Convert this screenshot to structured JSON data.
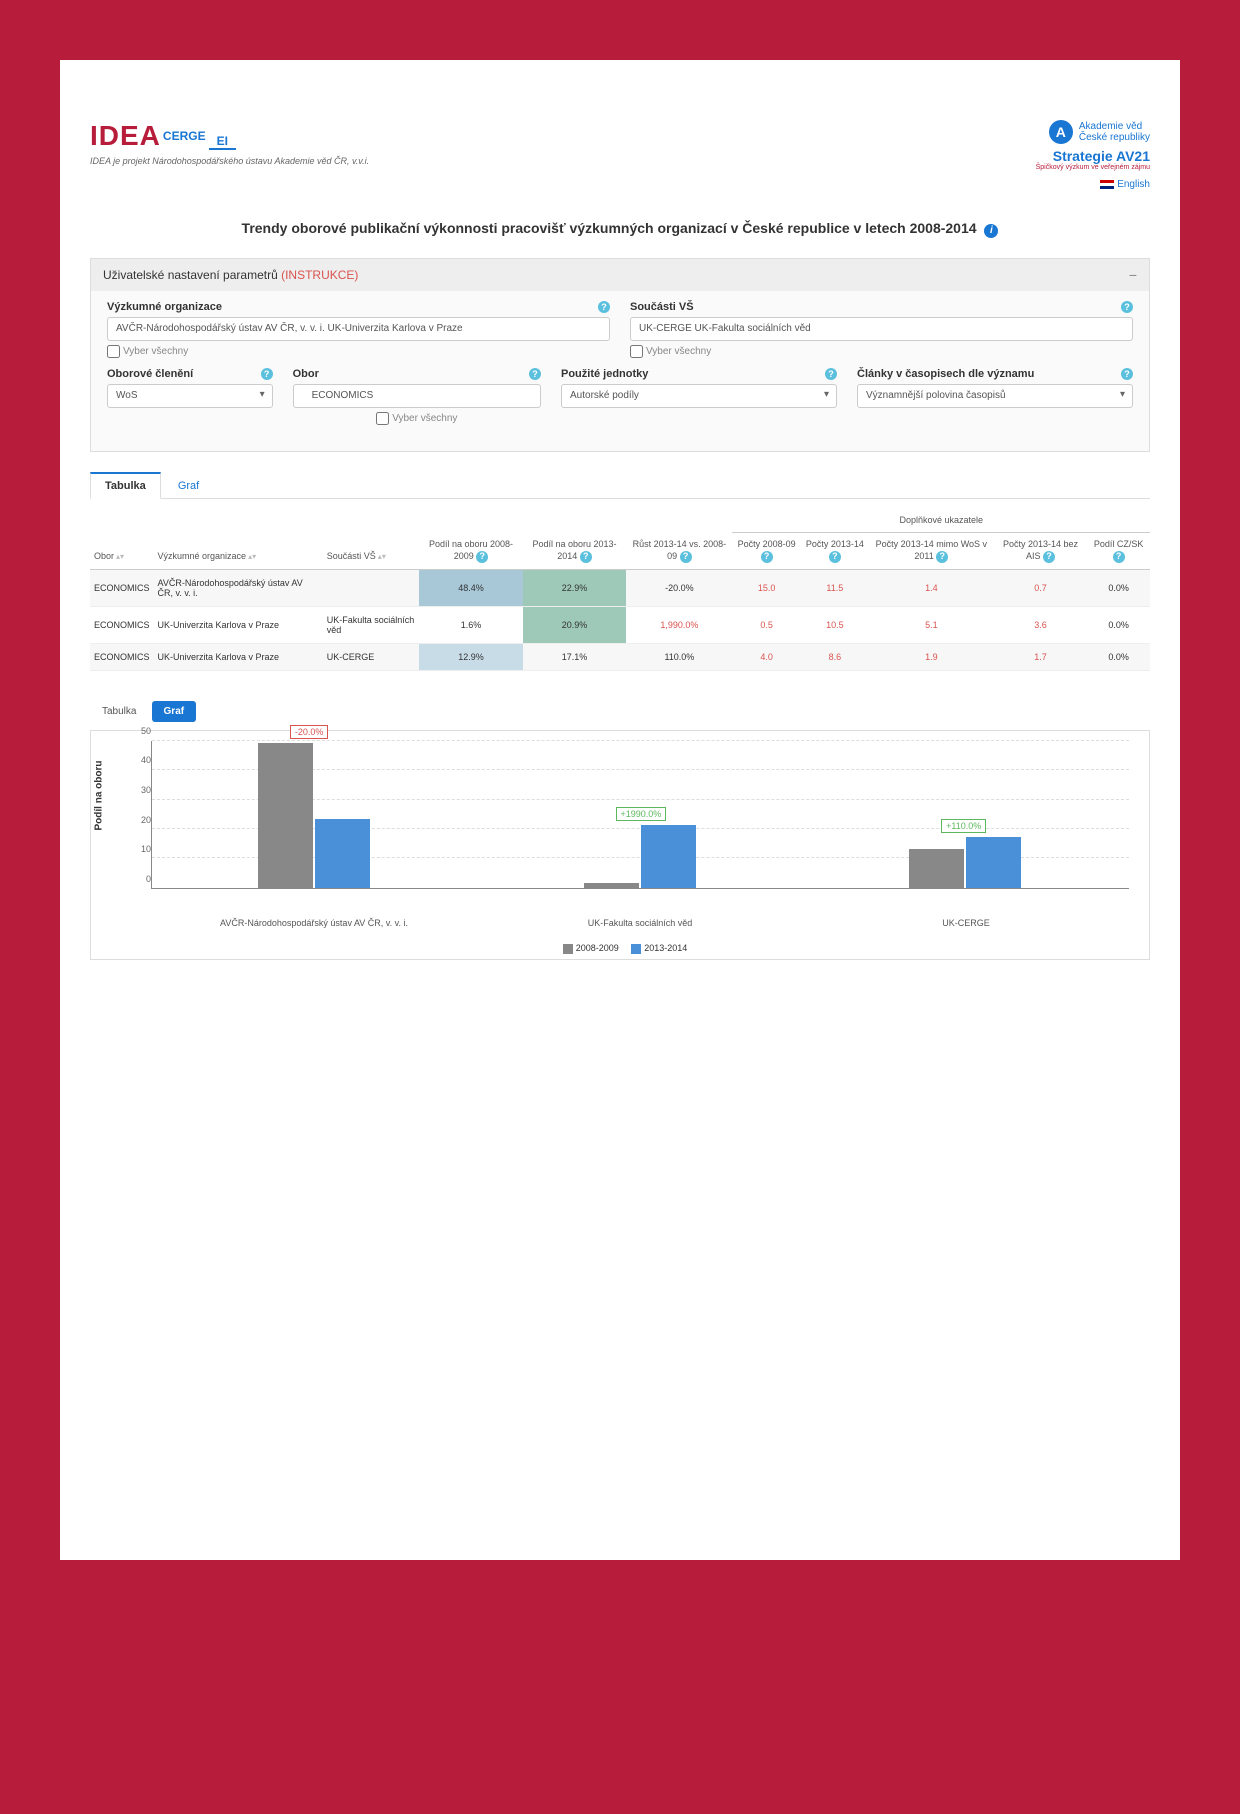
{
  "header": {
    "logo_main": "IDEA",
    "logo_cerge": "CERGE",
    "logo_ei": "EI",
    "logo_sub": "IDEA je projekt Národohospodářského ústavu Akademie věd ČR, v.v.i.",
    "av_line1": "Akademie věd",
    "av_line2": "České republiky",
    "strategie": "Strategie AV21",
    "strategie_sub": "Špičkový výzkum ve veřejném zájmu",
    "lang": "English"
  },
  "title": "Trendy oborové publikační výkonnosti pracovišť výzkumných organizací v České republice v letech 2008-2014",
  "panel": {
    "heading": "Uživatelské nastavení parametrů",
    "instrukce": "(INSTRUKCE)",
    "org_label": "Výzkumné organizace",
    "org_value": "AVČR-Národohospodářský ústav AV ČR, v. v. i.  UK-Univerzita Karlova v Praze",
    "vs_label": "Součásti VŠ",
    "vs_value": "UK-CERGE  UK-Fakulta sociálních věd",
    "select_all": "Vyber všechny",
    "obor_cleneni_label": "Oborové členění",
    "obor_cleneni_value": "WoS",
    "obor_label": "Obor",
    "obor_value": "ECONOMICS",
    "jednotky_label": "Použité jednotky",
    "jednotky_value": "Autorské podíly",
    "clanky_label": "Články v časopisech dle významu",
    "clanky_value": "Významnější polovina časopisů"
  },
  "tabs": {
    "tabulka": "Tabulka",
    "graf": "Graf"
  },
  "table": {
    "super_dopln": "Doplňkové ukazatele",
    "cols": {
      "obor": "Obor",
      "org": "Výzkumné organizace",
      "vs": "Součásti VŠ",
      "podil1": "Podíl na oboru 2008-2009",
      "podil2": "Podíl na oboru 2013-2014",
      "rust": "Růst 2013-14 vs. 2008-09",
      "pocty1": "Počty 2008-09",
      "pocty2": "Počty 2013-14",
      "pocty3": "Počty 2013-14 mimo WoS v 2011",
      "pocty4": "Počty 2013-14 bez AIS",
      "podilcz": "Podíl CZ/SK"
    },
    "rows": [
      {
        "obor": "ECONOMICS",
        "org": "AVČR-Národohospodářský ústav AV ČR, v. v. i.",
        "vs": "",
        "p1": "48.4%",
        "p2": "22.9%",
        "rust": "-20.0%",
        "c1": "15.0",
        "c2": "11.5",
        "c3": "1.4",
        "c4": "0.7",
        "cz": "0.0%",
        "bg1": "cell-bg1",
        "bg2": "cell-bg3",
        "rustcls": ""
      },
      {
        "obor": "ECONOMICS",
        "org": "UK-Univerzita Karlova v Praze",
        "vs": "UK-Fakulta sociálních věd",
        "p1": "1.6%",
        "p2": "20.9%",
        "rust": "1,990.0%",
        "c1": "0.5",
        "c2": "10.5",
        "c3": "5.1",
        "c4": "3.6",
        "cz": "0.0%",
        "bg1": "",
        "bg2": "cell-bg3",
        "rustcls": "red-text"
      },
      {
        "obor": "ECONOMICS",
        "org": "UK-Univerzita Karlova v Praze",
        "vs": "UK-CERGE",
        "p1": "12.9%",
        "p2": "17.1%",
        "rust": "110.0%",
        "c1": "4.0",
        "c2": "8.6",
        "c3": "1.9",
        "c4": "1.7",
        "cz": "0.0%",
        "bg1": "cell-bg2",
        "bg2": "",
        "rustcls": ""
      }
    ]
  },
  "chart": {
    "y_label": "Podíl na oboru",
    "y_max": 50,
    "y_ticks": [
      0,
      10,
      20,
      30,
      40,
      50
    ],
    "series": [
      {
        "name": "AVČR-Národohospodářský ústav AV ČR, v. v. i.",
        "v1": 48.4,
        "v2": 22.9,
        "growth": "-20.0%",
        "gcls": "neg"
      },
      {
        "name": "UK-Fakulta sociálních věd",
        "v1": 1.6,
        "v2": 20.9,
        "growth": "+1990.0%",
        "gcls": "pos"
      },
      {
        "name": "UK-CERGE",
        "v1": 12.9,
        "v2": 17.1,
        "growth": "+110.0%",
        "gcls": "pos"
      }
    ],
    "legend1": "2008-2009",
    "legend2": "2013-2014",
    "color1": "#888888",
    "color2": "#4a90d9"
  }
}
